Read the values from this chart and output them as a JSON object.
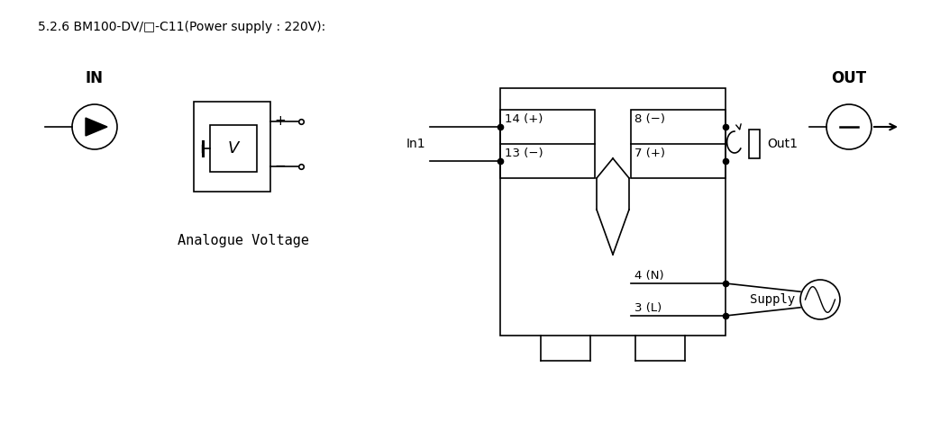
{
  "title": "5.2.6 BM100-DV/□-C11(Power supply : 220V):",
  "bg_color": "#ffffff",
  "line_color": "#000000",
  "fig_width": 10.33,
  "fig_height": 4.68,
  "dpi": 100,
  "in_label": "IN",
  "out_label": "OUT",
  "in1_label": "In1",
  "out1_label": "Out1",
  "supply_label": "Supply",
  "analogue_voltage_label": "Analogue Voltage",
  "pin_14": "14 (+)",
  "pin_13": "13 (−)",
  "pin_8": "8 (−)",
  "pin_7": "7 (+)",
  "pin_4": "4 (N)",
  "pin_3": "3 (L)"
}
